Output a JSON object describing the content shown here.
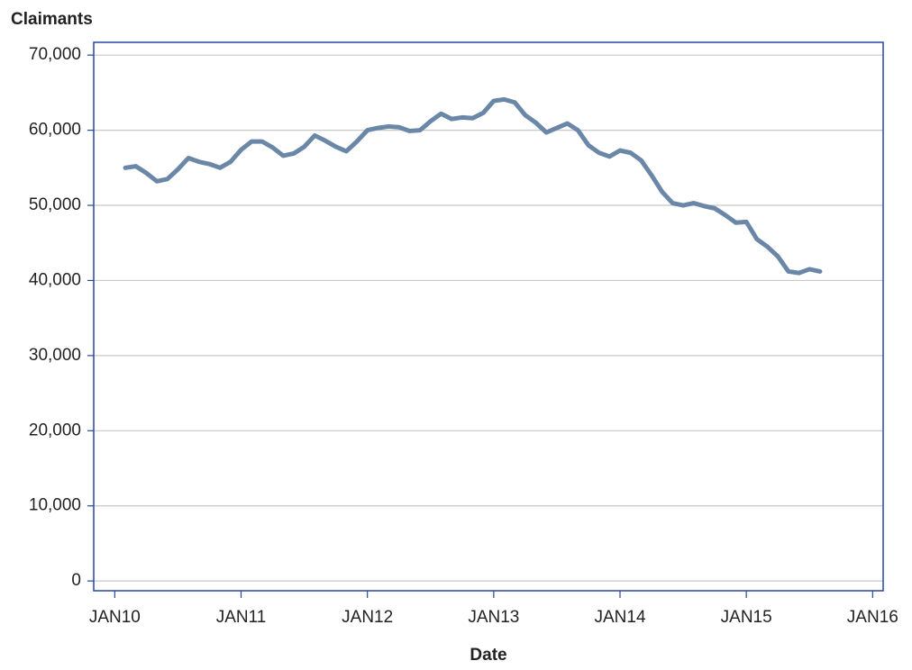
{
  "chart_data": {
    "type": "line",
    "y_label": "Claimants",
    "x_label": "Date",
    "x": [
      "2010-02",
      "2010-03",
      "2010-04",
      "2010-05",
      "2010-06",
      "2010-07",
      "2010-08",
      "2010-09",
      "2010-10",
      "2010-11",
      "2010-12",
      "2011-01",
      "2011-02",
      "2011-03",
      "2011-04",
      "2011-05",
      "2011-06",
      "2011-07",
      "2011-08",
      "2011-09",
      "2011-10",
      "2011-11",
      "2011-12",
      "2012-01",
      "2012-02",
      "2012-03",
      "2012-04",
      "2012-05",
      "2012-06",
      "2012-07",
      "2012-08",
      "2012-09",
      "2012-10",
      "2012-11",
      "2012-12",
      "2013-01",
      "2013-02",
      "2013-03",
      "2013-04",
      "2013-05",
      "2013-06",
      "2013-07",
      "2013-08",
      "2013-09",
      "2013-10",
      "2013-11",
      "2013-12",
      "2014-01",
      "2014-02",
      "2014-03",
      "2014-04",
      "2014-05",
      "2014-06",
      "2014-07",
      "2014-08",
      "2014-09",
      "2014-10",
      "2014-11",
      "2014-12",
      "2015-01",
      "2015-02",
      "2015-03",
      "2015-04",
      "2015-05",
      "2015-06",
      "2015-07",
      "2015-08"
    ],
    "values": [
      55000,
      55200,
      54300,
      53200,
      53500,
      54800,
      56300,
      55800,
      55500,
      55000,
      55800,
      57400,
      58500,
      58500,
      57700,
      56600,
      56900,
      57800,
      59300,
      58600,
      57800,
      57200,
      58500,
      60000,
      60300,
      60500,
      60400,
      59900,
      60000,
      61200,
      62200,
      61500,
      61700,
      61600,
      62300,
      63900,
      64100,
      63700,
      62000,
      61000,
      59700,
      60300,
      60900,
      60000,
      58000,
      57000,
      56500,
      57300,
      57000,
      56000,
      54000,
      51800,
      50300,
      50000,
      50300,
      49900,
      49600,
      48700,
      47700,
      47800,
      45500,
      44500,
      43200,
      41200,
      41000,
      41500,
      41200
    ],
    "color": "#6b87a8",
    "xlim": [
      "2009-11",
      "2016-02"
    ],
    "xticks": [
      {
        "value": "2010-01",
        "label": "JAN10"
      },
      {
        "value": "2011-01",
        "label": "JAN11"
      },
      {
        "value": "2012-01",
        "label": "JAN12"
      },
      {
        "value": "2013-01",
        "label": "JAN13"
      },
      {
        "value": "2014-01",
        "label": "JAN14"
      },
      {
        "value": "2015-01",
        "label": "JAN15"
      },
      {
        "value": "2016-01",
        "label": "JAN16"
      }
    ],
    "ylim": [
      -1300,
      71700
    ],
    "yticks": [
      0,
      {
        "value": 10000,
        "label": "10,000"
      },
      {
        "value": 20000,
        "label": "20,000"
      },
      {
        "value": 30000,
        "label": "30,000"
      },
      {
        "value": 40000,
        "label": "40,000"
      },
      {
        "value": 50000,
        "label": "50,000"
      },
      {
        "value": 60000,
        "label": "60,000"
      },
      {
        "value": 70000,
        "label": "70,000"
      }
    ],
    "grid": true
  }
}
